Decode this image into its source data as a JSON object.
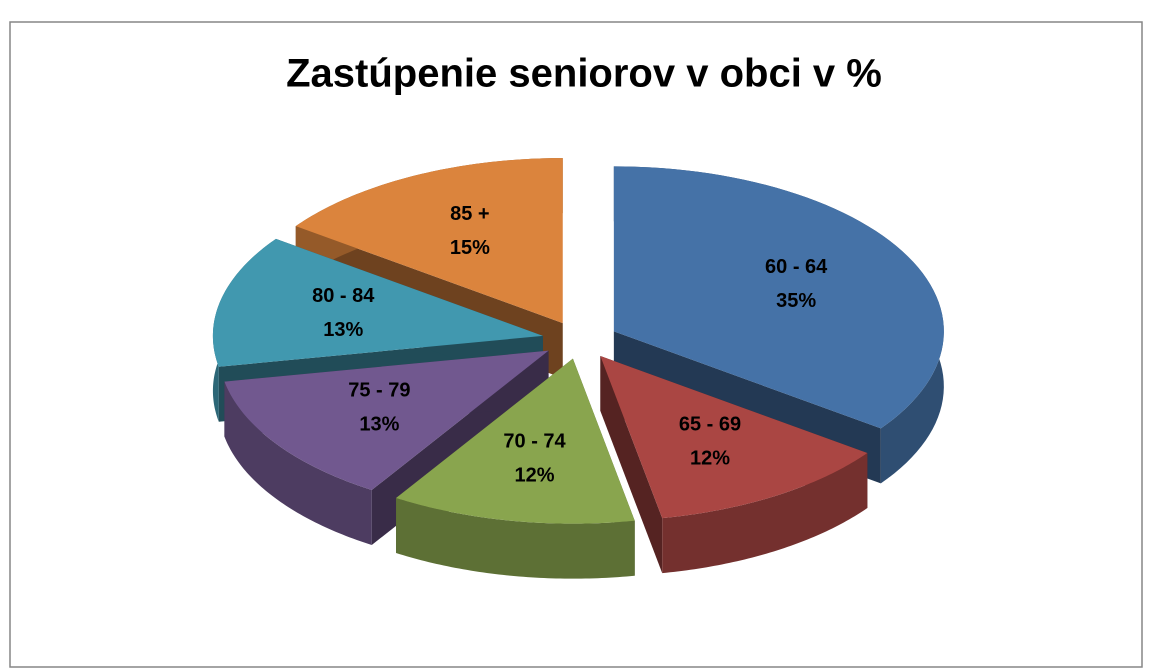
{
  "chart_data": {
    "type": "pie",
    "title": "Zastúpenie seniorov v obci v %",
    "categories": [
      "60 - 64",
      "65 - 69",
      "70 - 74",
      "75 - 79",
      "80 - 84",
      "85 +"
    ],
    "values": [
      35,
      12,
      12,
      13,
      13,
      15
    ],
    "value_labels": [
      "35%",
      "12%",
      "12%",
      "13%",
      "13%",
      "15%"
    ],
    "colors": [
      "#4572a7",
      "#aa4643",
      "#89a54e",
      "#71588f",
      "#4198af",
      "#db843d"
    ]
  }
}
